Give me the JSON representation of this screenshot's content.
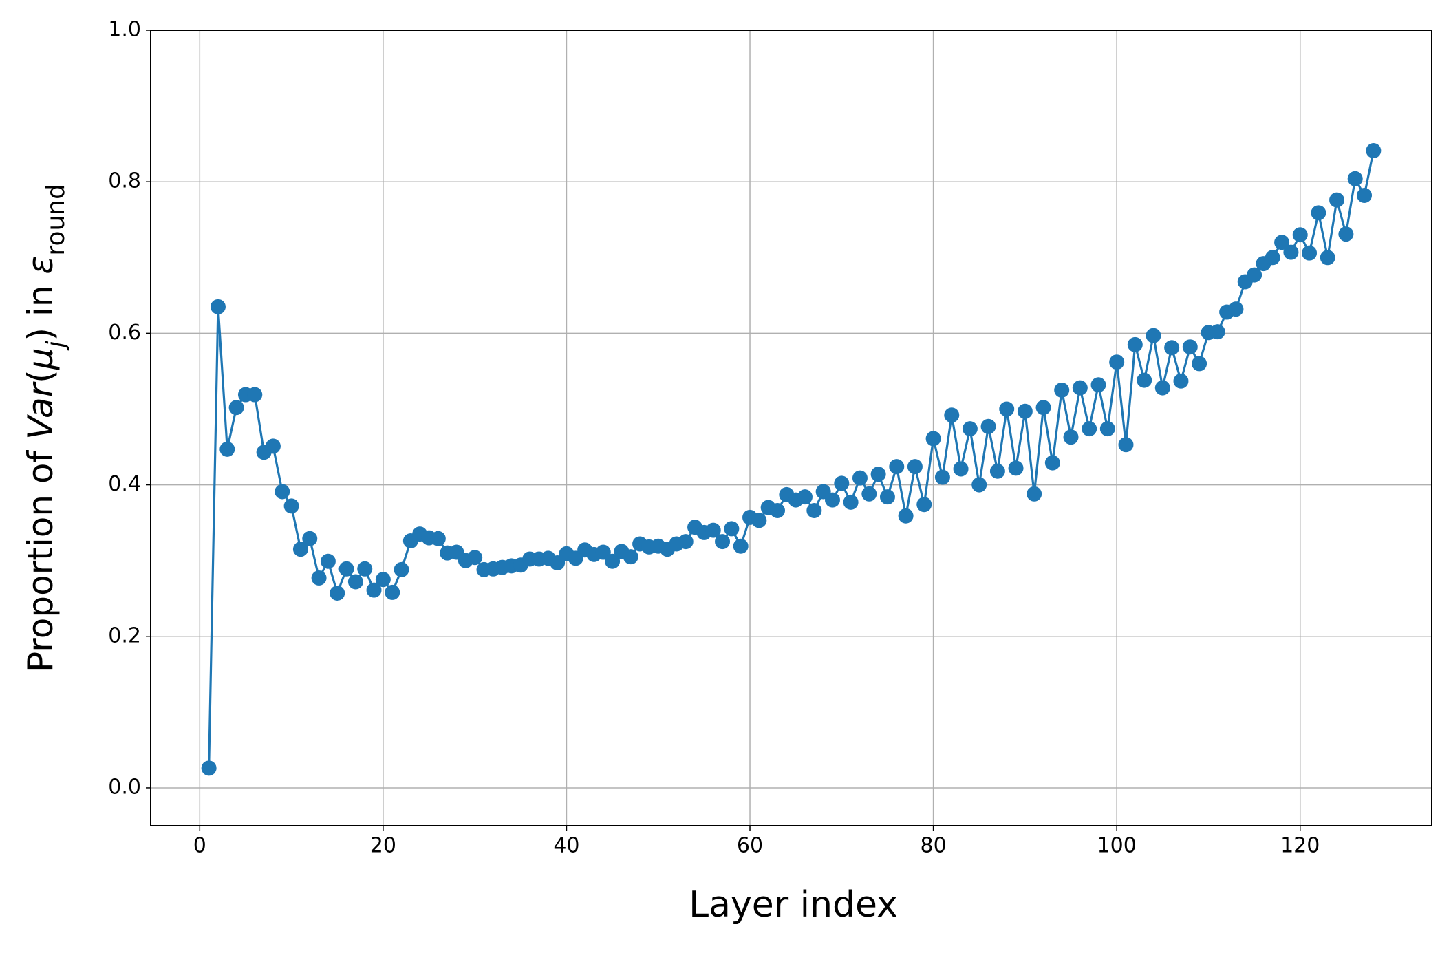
{
  "chart_data": {
    "type": "line",
    "xlabel": "Layer index",
    "ylabel": [
      "Proportion of ",
      "Var",
      "(",
      "μ",
      "j",
      ") in ",
      "ε",
      "round"
    ],
    "x": [
      1,
      2,
      3,
      4,
      5,
      6,
      7,
      8,
      9,
      10,
      11,
      12,
      13,
      14,
      15,
      16,
      17,
      18,
      19,
      20,
      21,
      22,
      23,
      24,
      25,
      26,
      27,
      28,
      29,
      30,
      31,
      32,
      33,
      34,
      35,
      36,
      37,
      38,
      39,
      40,
      41,
      42,
      43,
      44,
      45,
      46,
      47,
      48,
      49,
      50,
      51,
      52,
      53,
      54,
      55,
      56,
      57,
      58,
      59,
      60,
      61,
      62,
      63,
      64,
      65,
      66,
      67,
      68,
      69,
      70,
      71,
      72,
      73,
      74,
      75,
      76,
      77,
      78,
      79,
      80,
      81,
      82,
      83,
      84,
      85,
      86,
      87,
      88,
      89,
      90,
      91,
      92,
      93,
      94,
      95,
      96,
      97,
      98,
      99,
      100,
      101,
      102,
      103,
      104,
      105,
      106,
      107,
      108,
      109,
      110,
      111,
      112,
      113,
      114,
      115,
      116,
      117,
      118,
      119,
      120,
      121,
      122,
      123,
      124,
      125,
      126,
      127,
      128
    ],
    "series": [
      {
        "color": "#1f77b4",
        "values": [
          0.026,
          0.635,
          0.447,
          0.502,
          0.519,
          0.519,
          0.443,
          0.451,
          0.391,
          0.372,
          0.315,
          0.329,
          0.277,
          0.299,
          0.257,
          0.289,
          0.272,
          0.289,
          0.261,
          0.275,
          0.258,
          0.288,
          0.326,
          0.335,
          0.33,
          0.329,
          0.31,
          0.311,
          0.3,
          0.304,
          0.288,
          0.289,
          0.291,
          0.293,
          0.294,
          0.302,
          0.302,
          0.303,
          0.297,
          0.309,
          0.303,
          0.314,
          0.308,
          0.311,
          0.299,
          0.312,
          0.305,
          0.322,
          0.318,
          0.319,
          0.315,
          0.322,
          0.325,
          0.344,
          0.337,
          0.34,
          0.325,
          0.342,
          0.319,
          0.357,
          0.353,
          0.37,
          0.366,
          0.387,
          0.38,
          0.384,
          0.366,
          0.391,
          0.38,
          0.402,
          0.377,
          0.409,
          0.388,
          0.414,
          0.384,
          0.424,
          0.359,
          0.424,
          0.374,
          0.461,
          0.41,
          0.492,
          0.421,
          0.474,
          0.4,
          0.477,
          0.418,
          0.5,
          0.422,
          0.497,
          0.388,
          0.502,
          0.429,
          0.525,
          0.463,
          0.528,
          0.474,
          0.532,
          0.474,
          0.562,
          0.453,
          0.585,
          0.538,
          0.597,
          0.528,
          0.581,
          0.537,
          0.582,
          0.56,
          0.601,
          0.602,
          0.628,
          0.632,
          0.668,
          0.677,
          0.692,
          0.7,
          0.72,
          0.707,
          0.73,
          0.706,
          0.759,
          0.7,
          0.776,
          0.731,
          0.804,
          0.782,
          0.841
        ]
      }
    ],
    "xlim": [
      -5.35,
      134.35
    ],
    "xticks": [
      0,
      20,
      40,
      60,
      80,
      100,
      120
    ],
    "ylim": [
      -0.05,
      1.0
    ],
    "yticks": [
      {
        "value": 0,
        "label": "0.0"
      },
      0.2,
      0.4,
      0.6,
      0.8,
      {
        "value": 1,
        "label": "1.0"
      }
    ],
    "grid": true
  }
}
